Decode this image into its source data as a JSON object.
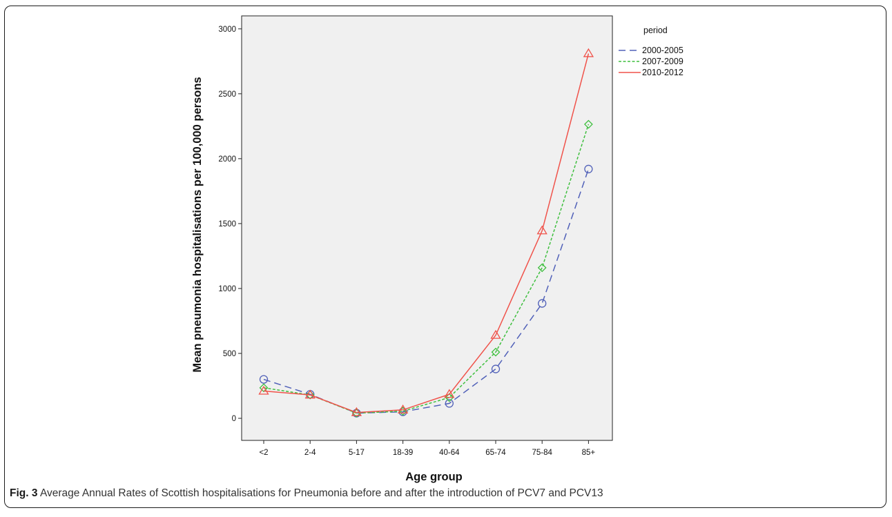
{
  "caption": {
    "label": "Fig. 3",
    "text": "Average Annual Rates of Scottish hospitalisations for Pneumonia before and after the introduction of PCV7 and PCV13"
  },
  "chart_data": {
    "type": "line",
    "title": "",
    "xlabel": "Age group",
    "ylabel": "Mean pneumonia hospitalisations per 100,000 persons",
    "categories": [
      "<2",
      "2-4",
      "5-17",
      "18-39",
      "40-64",
      "65-74",
      "75-84",
      "85+"
    ],
    "ylim": [
      -170,
      3100
    ],
    "yticks": [
      0,
      500,
      1000,
      1500,
      2000,
      2500,
      3000
    ],
    "grid": false,
    "plot_background": "#f0f0f0",
    "legend": {
      "title": "period",
      "placement": "outside-top-right"
    },
    "series": [
      {
        "name": "2000-2005",
        "color": "#5060b8",
        "dash": "dashed",
        "marker": "circle",
        "values": [
          300,
          185,
          40,
          50,
          115,
          380,
          885,
          1920
        ]
      },
      {
        "name": "2007-2009",
        "color": "#3ebf3e",
        "dash": "dotted",
        "marker": "diamond",
        "values": [
          235,
          180,
          40,
          55,
          160,
          510,
          1160,
          2265
        ]
      },
      {
        "name": "2010-2012",
        "color": "#f0524a",
        "dash": "solid",
        "marker": "triangle",
        "values": [
          210,
          180,
          45,
          65,
          185,
          640,
          1445,
          2810
        ]
      }
    ]
  }
}
